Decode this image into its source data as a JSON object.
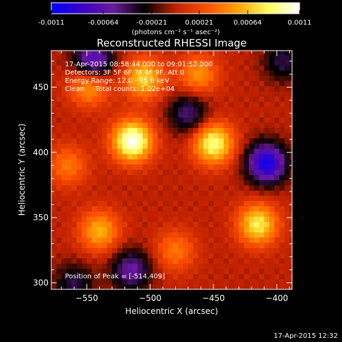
{
  "colorbar": {
    "tick_labels": [
      "-0.0011",
      "-0.00064",
      "-0.00021",
      "0.00021",
      "0.00064",
      "0.0011"
    ],
    "units_label": "(photons cm⁻² s⁻¹ asec⁻²)",
    "colors": [
      "#0000ff",
      "#3a00c8",
      "#6a1a9a",
      "#000000",
      "#c02000",
      "#ff5000",
      "#ffa000",
      "#ffff60",
      "#ffffff"
    ]
  },
  "chart_data": {
    "type": "heatmap",
    "title": "Reconstructed RHESSI Image",
    "xlabel": "Heliocentric X (arcsec)",
    "ylabel": "Heliocentric Y (arcsec)",
    "xlim": [
      -578,
      -388
    ],
    "ylim": [
      295,
      478
    ],
    "x_ticks": [
      -550,
      -500,
      -450,
      -400
    ],
    "y_ticks": [
      300,
      350,
      400,
      450
    ],
    "x_tick_labels": [
      "−550",
      "−500",
      "−450",
      "−400"
    ],
    "y_tick_labels": [
      "300",
      "350",
      "400",
      "450"
    ],
    "annotations": [
      "17-Apr-2015 08:58:44.000 to 09:01:52.000",
      "Detectors: 3F 5F 6F 7F 8F 9F, Att 0",
      "Energy Range: 12.0 - 25.0 keV",
      "Clean     Total counts: 1.02e+04"
    ],
    "peak_label": "Position of Peak = [-514,409]",
    "peak": [
      -514,
      409
    ],
    "value_range": [
      -0.0011,
      0.0011
    ],
    "sources": [
      {
        "x": -514,
        "y": 409,
        "amp": 0.0011
      },
      {
        "x": -450,
        "y": 407,
        "amp": 0.0009
      },
      {
        "x": -505,
        "y": 457,
        "amp": 0.0007
      },
      {
        "x": -548,
        "y": 452,
        "amp": 0.0006
      },
      {
        "x": -462,
        "y": 460,
        "amp": 0.0005
      },
      {
        "x": -415,
        "y": 345,
        "amp": 0.0008
      },
      {
        "x": -540,
        "y": 340,
        "amp": 0.0006
      },
      {
        "x": -480,
        "y": 325,
        "amp": 0.0004
      },
      {
        "x": -565,
        "y": 390,
        "amp": 0.0004
      },
      {
        "x": -545,
        "y": 470,
        "amp": -0.0008
      },
      {
        "x": -408,
        "y": 392,
        "amp": -0.001
      },
      {
        "x": -515,
        "y": 310,
        "amp": -0.0006
      },
      {
        "x": -470,
        "y": 430,
        "amp": -0.0005
      },
      {
        "x": -395,
        "y": 470,
        "amp": -0.0004
      },
      {
        "x": -560,
        "y": 300,
        "amp": -0.0004
      }
    ]
  },
  "footer": {
    "timestamp": "17-Apr-2015 12:32"
  }
}
